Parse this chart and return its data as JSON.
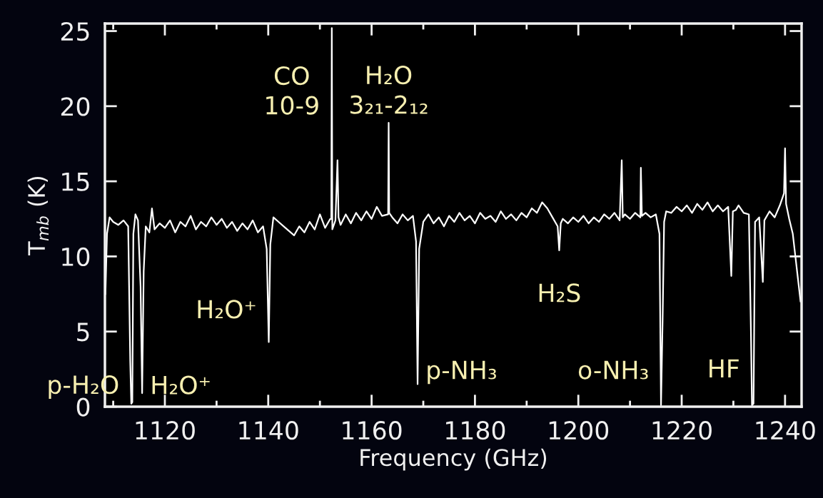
{
  "chart_data": {
    "type": "line",
    "xlabel": "Frequency (GHz)",
    "ylabel": "T$_{mb}$ (K)",
    "xlim": [
      1108.4,
      1243.2
    ],
    "ylim": [
      0,
      25.5
    ],
    "xticks": [
      1120,
      1140,
      1160,
      1180,
      1200,
      1220,
      1240
    ],
    "yticks": [
      0,
      5,
      10,
      15,
      20,
      25
    ],
    "x": [
      1108.5,
      1108.8,
      1109.3,
      1110,
      1111,
      1112,
      1112.9,
      1113.3,
      1113.5,
      1113.7,
      1113.9,
      1114.3,
      1114.8,
      1115.3,
      1115.6,
      1115.9,
      1116.3,
      1117,
      1117.5,
      1118,
      1119,
      1120,
      1121,
      1122,
      1123,
      1124,
      1125,
      1126,
      1127,
      1128,
      1129,
      1130,
      1131,
      1132,
      1133,
      1134,
      1135,
      1136,
      1137,
      1138,
      1139,
      1139.7,
      1140.1,
      1140.4,
      1141,
      1142,
      1143,
      1144,
      1145,
      1146,
      1147,
      1148,
      1149,
      1150,
      1151,
      1152,
      1152.2,
      1152.3,
      1152.4,
      1153,
      1153.4,
      1153.6,
      1154,
      1155,
      1156,
      1157,
      1158,
      1159,
      1160,
      1161,
      1162,
      1163.2,
      1163.3,
      1163.4,
      1164,
      1165,
      1166,
      1167,
      1168,
      1168.6,
      1168.9,
      1169.2,
      1170,
      1171,
      1172,
      1173,
      1174,
      1175,
      1176,
      1177,
      1178,
      1179,
      1180,
      1181,
      1182,
      1183,
      1184,
      1185,
      1186,
      1187,
      1188,
      1189,
      1190,
      1191,
      1192,
      1193,
      1194,
      1195,
      1196,
      1196.3,
      1196.6,
      1197,
      1198,
      1199,
      1200,
      1201,
      1202,
      1203,
      1204,
      1205,
      1206,
      1207,
      1208,
      1208.4,
      1208.6,
      1209,
      1210,
      1211,
      1212,
      1212.1,
      1212.3,
      1213,
      1214,
      1215,
      1215.7,
      1216.0,
      1216.3,
      1216.6,
      1217,
      1218,
      1219,
      1220,
      1221,
      1222,
      1223,
      1224,
      1225,
      1226,
      1227,
      1228,
      1229,
      1229.6,
      1229.9,
      1230.5,
      1231,
      1232,
      1233,
      1233.4,
      1233.6,
      1233.9,
      1234.2,
      1235,
      1235.7,
      1236,
      1237,
      1238,
      1239,
      1239.8,
      1240.0,
      1240.2,
      1240.8,
      1241.5,
      1242,
      1242.5,
      1243
    ],
    "series": [
      {
        "color": "#ffffff",
        "values": [
          7.5,
          11.5,
          12.6,
          12.3,
          12.1,
          12.4,
          12.0,
          3,
          0.2,
          0.3,
          11.5,
          12.8,
          12.4,
          8,
          0.9,
          9,
          12.0,
          11.6,
          13.2,
          11.8,
          12.2,
          11.9,
          12.4,
          11.6,
          12.3,
          12.0,
          12.7,
          11.8,
          12.3,
          12.0,
          12.6,
          12.1,
          12.5,
          11.9,
          12.3,
          11.7,
          12.2,
          11.8,
          12.4,
          11.6,
          12.0,
          10.5,
          4.3,
          10.8,
          12.6,
          12.3,
          12.0,
          11.7,
          11.4,
          12.0,
          11.6,
          12.3,
          11.8,
          12.8,
          11.9,
          12.5,
          12.5,
          25.2,
          11.8,
          12.4,
          16.4,
          12.6,
          12.1,
          12.8,
          12.2,
          12.9,
          12.4,
          13.0,
          12.5,
          13.3,
          12.7,
          12.8,
          18.9,
          12.9,
          12.6,
          12.2,
          12.8,
          12.4,
          12.7,
          11.0,
          1.5,
          10.5,
          12.3,
          12.8,
          12.2,
          12.6,
          12.0,
          12.7,
          12.3,
          12.9,
          12.4,
          12.7,
          12.2,
          12.9,
          12.5,
          12.7,
          12.3,
          13.0,
          12.5,
          12.8,
          12.4,
          12.9,
          12.6,
          13.2,
          12.9,
          13.6,
          13.2,
          12.6,
          12.0,
          10.4,
          12.2,
          12.5,
          12.2,
          12.6,
          12.3,
          12.7,
          12.2,
          12.6,
          12.3,
          12.8,
          12.5,
          12.9,
          12.4,
          16.4,
          12.6,
          12.8,
          12.5,
          12.9,
          12.6,
          15.9,
          12.7,
          12.9,
          12.6,
          12.8,
          11.5,
          0.1,
          5.6,
          12.3,
          13.0,
          12.9,
          13.3,
          13.0,
          13.4,
          12.9,
          13.5,
          13.1,
          13.6,
          13.0,
          13.4,
          13.0,
          13.3,
          8.7,
          13.0,
          13.1,
          13.4,
          12.9,
          12.8,
          5,
          0.1,
          0.2,
          12.3,
          12.6,
          8.3,
          12.4,
          13.0,
          12.6,
          13.4,
          14.2,
          17.2,
          13.5,
          12.5,
          11.5,
          10.0,
          8.5,
          7.0
        ]
      }
    ],
    "annotations": [
      {
        "text": "p-H₂O",
        "x": 1113.5,
        "y": 0.2
      },
      {
        "text": "H₂O⁺",
        "x": 1115.6,
        "y": 0.9
      },
      {
        "text": "H₂O⁺",
        "x": 1140.1,
        "y": 4.3
      },
      {
        "text": "CO\n10-9",
        "x": 1152.3,
        "y": 20.9
      },
      {
        "text": "H₂O\n3₂₁-2₁₂",
        "x": 1163.3,
        "y": 18.9
      },
      {
        "text": "p-NH₃",
        "x": 1168.9,
        "y": 2.3
      },
      {
        "text": "H₂S",
        "x": 1196.3,
        "y": 10.4
      },
      {
        "text": "o-NH₃",
        "x": 1216.0,
        "y": 2.3
      },
      {
        "text": "HF",
        "x": 1233.6,
        "y": 2.4
      }
    ]
  }
}
